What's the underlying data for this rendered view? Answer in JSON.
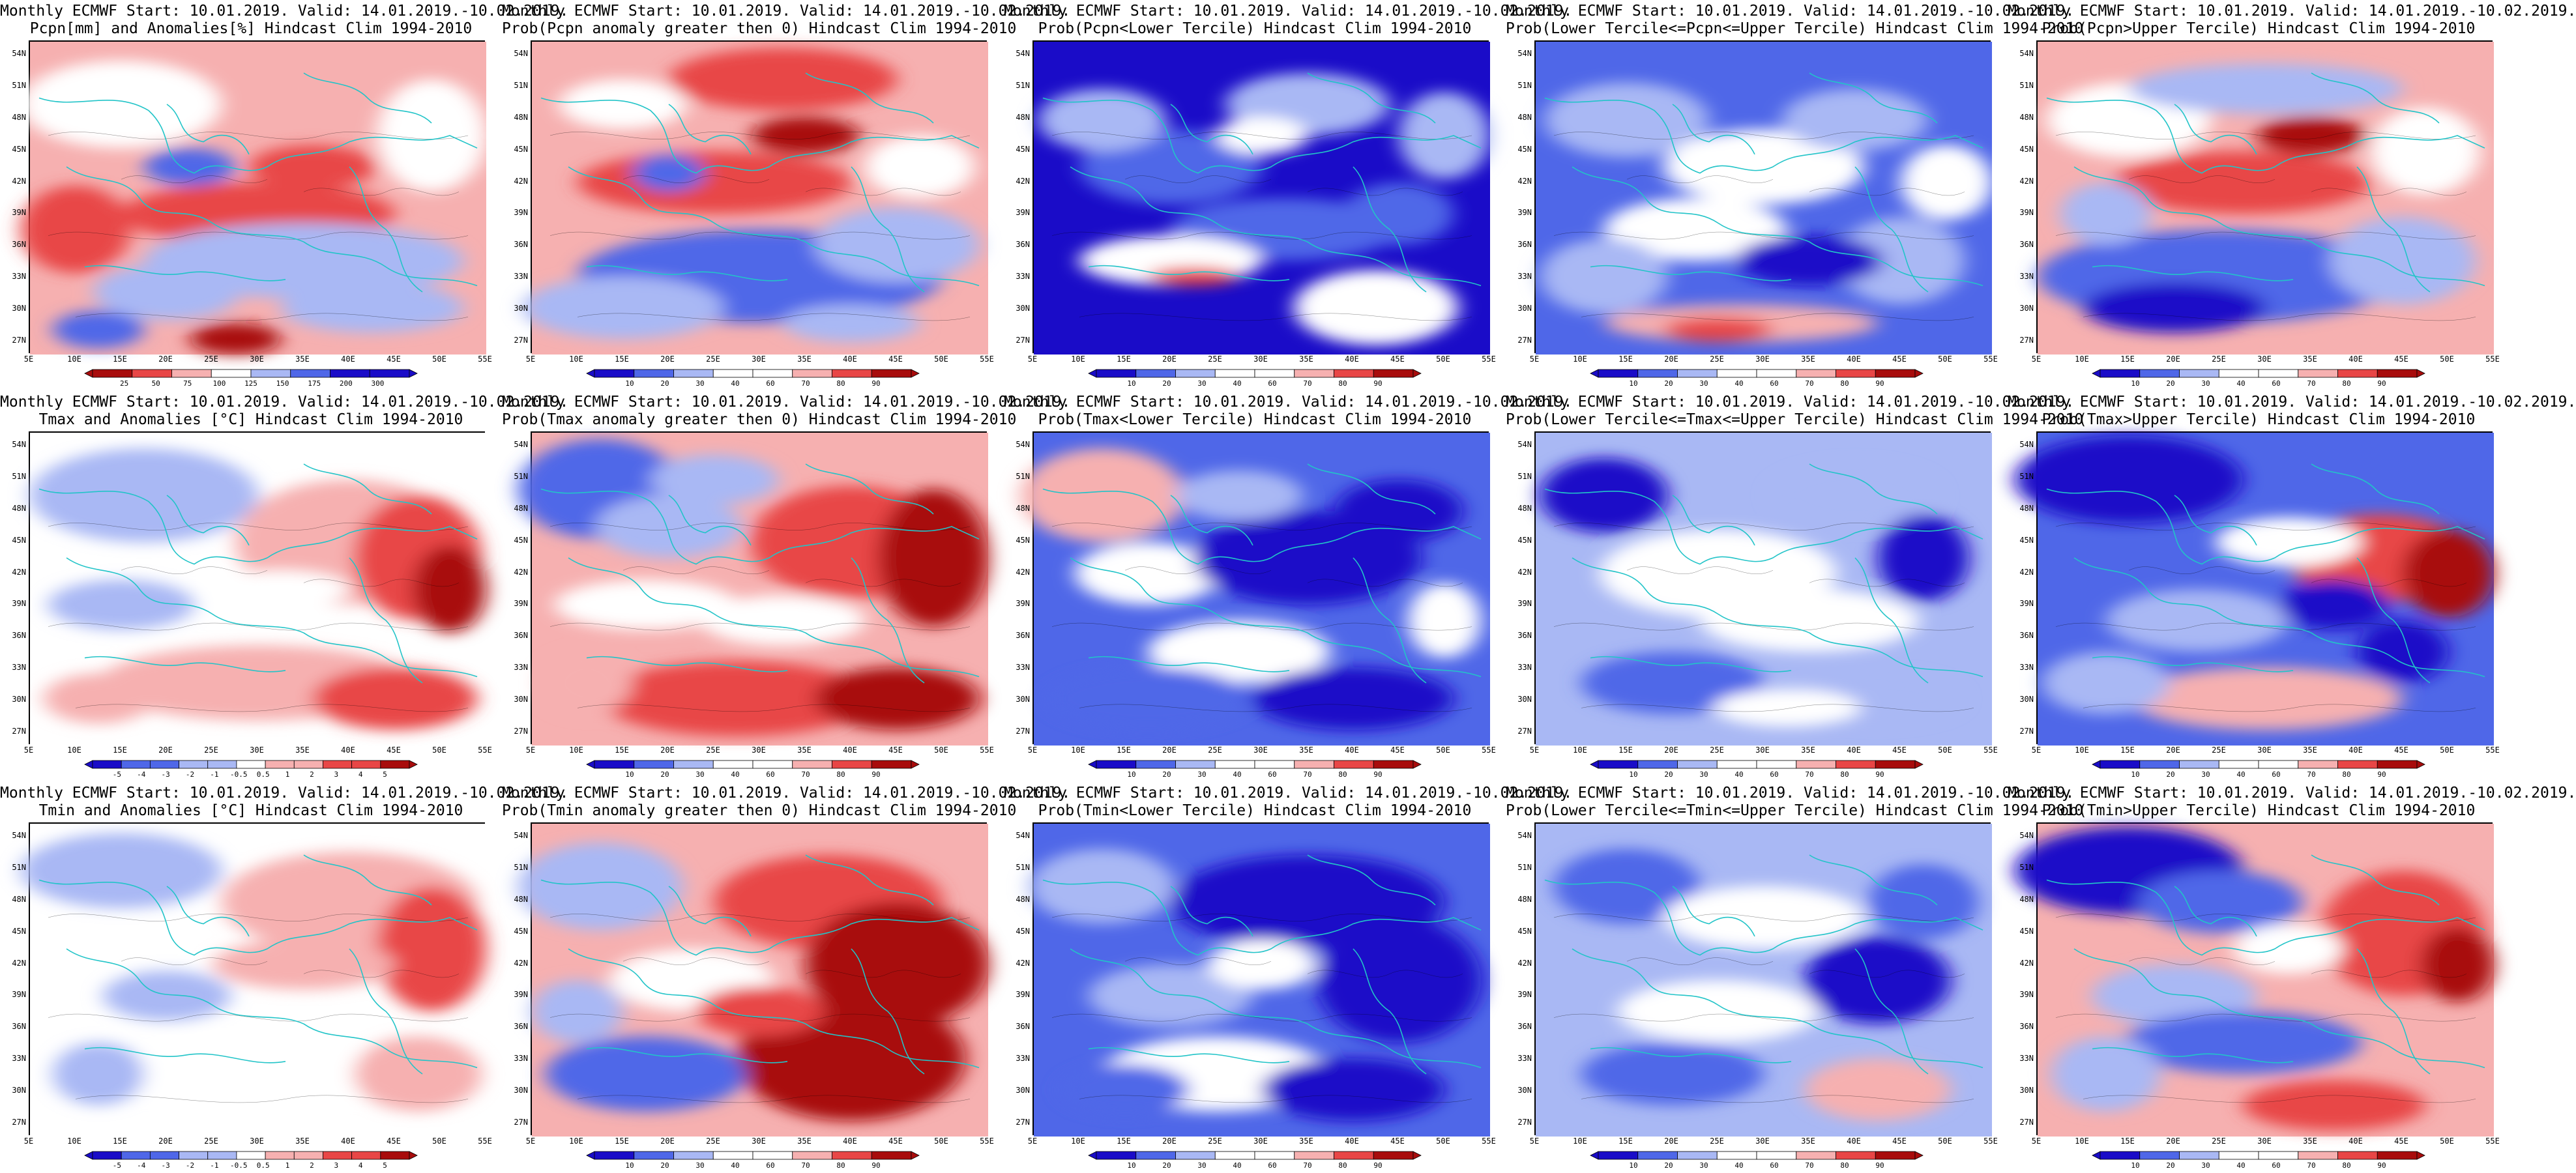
{
  "colors": {
    "blue_dark": "#1a0cc8",
    "blue_mid": "#4f67e8",
    "blue_light": "#a9b8f4",
    "white": "#ffffff",
    "red_light": "#f6b0b0",
    "red_mid": "#e84646",
    "red_dark": "#a80c0c",
    "coastline": "#22c4c8",
    "contour": "#000000"
  },
  "axes": {
    "y_ticks": [
      "54N",
      "51N",
      "48N",
      "45N",
      "42N",
      "39N",
      "36N",
      "33N",
      "30N",
      "27N"
    ],
    "x_ticks": [
      "5E",
      "10E",
      "15E",
      "20E",
      "25E",
      "30E",
      "35E",
      "40E",
      "45E",
      "50E",
      "55E"
    ]
  },
  "colorbars": {
    "pcpn_anom": [
      "25",
      "50",
      "75",
      "100",
      "125",
      "150",
      "175",
      "200",
      "300"
    ],
    "temp_anom": [
      "-5",
      "-4",
      "-3",
      "-2",
      "-1",
      "-0.5",
      "0.5",
      "1",
      "2",
      "3",
      "4",
      "5"
    ],
    "prob": [
      "10",
      "20",
      "30",
      "40",
      "60",
      "70",
      "80",
      "90"
    ]
  },
  "panels": [
    {
      "title1": "Monthly ECMWF Start: 10.01.2019. Valid: 14.01.2019.-10.02.2019.",
      "title2": "Pcpn[mm] and Anomalies[%] Hindcast Clim 1994-2010",
      "colorbar": "pcpn_anom",
      "field": "pcpn_anom"
    },
    {
      "title1": "Monthly ECMWF Start: 10.01.2019. Valid: 14.01.2019.-10.02.2019.",
      "title2": "Prob(Pcpn anomaly greater then 0) Hindcast Clim 1994-2010",
      "colorbar": "prob",
      "field": "pcpn_prob_pos"
    },
    {
      "title1": "Monthly ECMWF Start: 10.01.2019. Valid: 14.01.2019.-10.02.2019.",
      "title2": "Prob(Pcpn<Lower Tercile) Hindcast Clim 1994-2010",
      "colorbar": "prob",
      "field": "pcpn_lower"
    },
    {
      "title1": "Monthly ECMWF Start: 10.01.2019. Valid: 14.01.2019.-10.02.2019.",
      "title2": "Prob(Lower Tercile<=Pcpn<=Upper Tercile) Hindcast Clim 1994-2010",
      "colorbar": "prob",
      "field": "pcpn_middle"
    },
    {
      "title1": "Monthly ECMWF Start: 10.01.2019. Valid: 14.01.2019.-10.02.2019.",
      "title2": "Prob(Pcpn>Upper Tercile) Hindcast Clim 1994-2010",
      "colorbar": "prob",
      "field": "pcpn_upper"
    },
    {
      "title1": "Monthly ECMWF Start: 10.01.2019. Valid: 14.01.2019.-10.02.2019.",
      "title2": "Tmax and Anomalies [°C] Hindcast Clim 1994-2010",
      "colorbar": "temp_anom",
      "field": "tmax_anom"
    },
    {
      "title1": "Monthly ECMWF Start: 10.01.2019. Valid: 14.01.2019.-10.02.2019.",
      "title2": "Prob(Tmax anomaly greater then 0) Hindcast Clim 1994-2010",
      "colorbar": "prob",
      "field": "tmax_prob_pos"
    },
    {
      "title1": "Monthly ECMWF Start: 10.01.2019. Valid: 14.01.2019.-10.02.2019.",
      "title2": "Prob(Tmax<Lower Tercile) Hindcast Clim 1994-2010",
      "colorbar": "prob",
      "field": "tmax_lower"
    },
    {
      "title1": "Monthly ECMWF Start: 10.01.2019. Valid: 14.01.2019.-10.02.2019.",
      "title2": "Prob(Lower Tercile<=Tmax<=Upper Tercile) Hindcast Clim 1994-2010",
      "colorbar": "prob",
      "field": "tmax_middle"
    },
    {
      "title1": "Monthly ECMWF Start: 10.01.2019. Valid: 14.01.2019.-10.02.2019.",
      "title2": "Prob(Tmax>Upper Tercile) Hindcast Clim 1994-2010",
      "colorbar": "prob",
      "field": "tmax_upper"
    },
    {
      "title1": "Monthly ECMWF Start: 10.01.2019. Valid: 14.01.2019.-10.02.2019.",
      "title2": "Tmin and Anomalies [°C] Hindcast Clim 1994-2010",
      "colorbar": "temp_anom",
      "field": "tmin_anom"
    },
    {
      "title1": "Monthly ECMWF Start: 10.01.2019. Valid: 14.01.2019.-10.02.2019.",
      "title2": "Prob(Tmin anomaly greater then 0) Hindcast Clim 1994-2010",
      "colorbar": "prob",
      "field": "tmin_prob_pos"
    },
    {
      "title1": "Monthly ECMWF Start: 10.01.2019. Valid: 14.01.2019.-10.02.2019.",
      "title2": "Prob(Tmin<Lower Tercile) Hindcast Clim 1994-2010",
      "colorbar": "prob",
      "field": "tmin_lower"
    },
    {
      "title1": "Monthly ECMWF Start: 10.01.2019. Valid: 14.01.2019.-10.02.2019.",
      "title2": "Prob(Lower Tercile<=Tmin<=Upper Tercile) Hindcast Clim 1994-2010",
      "colorbar": "prob",
      "field": "tmin_middle"
    },
    {
      "title1": "Monthly ECMWF Start: 10.01.2019. Valid: 14.01.2019.-10.02.2019.",
      "title2": "Prob(Tmin>Upper Tercile) Hindcast Clim 1994-2010",
      "colorbar": "prob",
      "field": "tmin_upper"
    }
  ]
}
